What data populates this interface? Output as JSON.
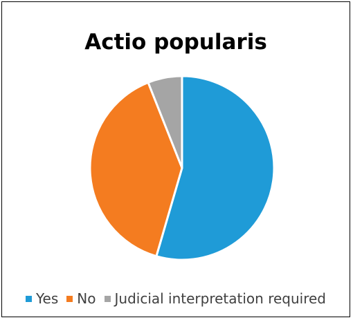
{
  "chart_data": {
    "type": "pie",
    "title": "Actio popularis",
    "categories": [
      "Yes",
      "No",
      "Judicial interpretation required"
    ],
    "values": [
      54.5,
      39.5,
      6.0
    ],
    "colors": [
      "#1f9bd7",
      "#f47c20",
      "#a5a5a5"
    ],
    "start_angle_deg": 0,
    "direction": "clockwise",
    "legend_position": "bottom"
  }
}
